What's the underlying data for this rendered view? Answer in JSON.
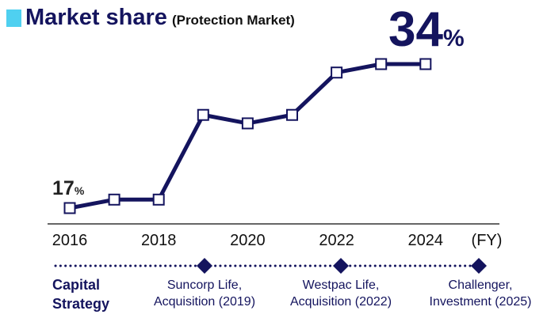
{
  "title": "Market share",
  "subtitle": "(Protection Market)",
  "end_label": {
    "value": "34",
    "unit": "%"
  },
  "start_label": {
    "value": "17",
    "unit": "%"
  },
  "chart_data": {
    "type": "line",
    "x": [
      2016,
      2017,
      2018,
      2019,
      2020,
      2021,
      2022,
      2023,
      2024
    ],
    "values": [
      17,
      18,
      18,
      28,
      27,
      28,
      33,
      34,
      34
    ],
    "unit": "%",
    "xticks": [
      "2016",
      "2018",
      "2020",
      "2022",
      "2024"
    ],
    "xlabel": "(FY)",
    "colors": {
      "line": "#14145e",
      "marker_fill": "#ffffff",
      "accent": "#4fd0f0"
    }
  },
  "timeline": {
    "label_line1": "Capital",
    "label_line2": "Strategy",
    "events": [
      {
        "line1": "Suncorp Life,",
        "line2": "Acquisition (2019)"
      },
      {
        "line1": "Westpac Life,",
        "line2": "Acquisition (2022)"
      },
      {
        "line1": "Challenger,",
        "line2": "Investment (2025)"
      }
    ]
  }
}
